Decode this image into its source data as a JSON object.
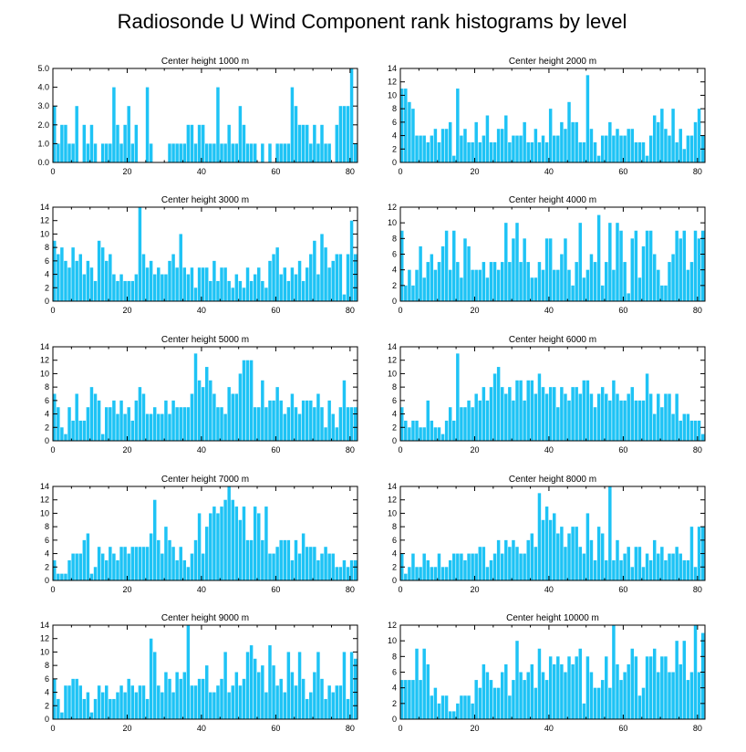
{
  "figure": {
    "title": "Radiosonde U Wind Component rank histograms by level",
    "bar_color": "#1ec3f5"
  },
  "chart_data": [
    {
      "type": "bar",
      "title": "Center height 1000 m",
      "x_ticks": [
        0,
        20,
        40,
        60,
        80
      ],
      "y_ticks": [
        "0.0",
        "1.0",
        "2.0",
        "3.0",
        "4.0",
        "5.0"
      ],
      "xlim": [
        0,
        82
      ],
      "ylim": [
        0,
        5
      ],
      "values": [
        3,
        1,
        2,
        2,
        1,
        1,
        3,
        0,
        2,
        1,
        2,
        1,
        0,
        1,
        1,
        1,
        4,
        2,
        1,
        2,
        3,
        1,
        2,
        0,
        0,
        4,
        1,
        0,
        0,
        0,
        0,
        1,
        1,
        1,
        1,
        1,
        2,
        2,
        1,
        2,
        2,
        1,
        1,
        1,
        4,
        1,
        1,
        2,
        1,
        1,
        3,
        2,
        1,
        1,
        1,
        0,
        1,
        0,
        1,
        0,
        1,
        1,
        1,
        1,
        4,
        3,
        2,
        2,
        2,
        1,
        2,
        1,
        2,
        1,
        1,
        0,
        2,
        3,
        3,
        3,
        5,
        1
      ]
    },
    {
      "type": "bar",
      "title": "Center height 2000 m",
      "x_ticks": [
        0,
        20,
        40,
        60,
        80
      ],
      "y_ticks": [
        "0",
        "2",
        "4",
        "6",
        "8",
        "10",
        "12",
        "14"
      ],
      "xlim": [
        0,
        82
      ],
      "ylim": [
        0,
        14
      ],
      "values": [
        11,
        11,
        9,
        8,
        4,
        4,
        4,
        3,
        4,
        5,
        3,
        5,
        5,
        6,
        1,
        11,
        4,
        5,
        3,
        3,
        6,
        3,
        4,
        7,
        3,
        3,
        5,
        5,
        7,
        3,
        4,
        4,
        4,
        6,
        3,
        3,
        5,
        3,
        4,
        3,
        8,
        4,
        4,
        6,
        5,
        9,
        6,
        6,
        3,
        3,
        13,
        5,
        3,
        1,
        4,
        4,
        6,
        4,
        5,
        4,
        4,
        5,
        5,
        3,
        3,
        3,
        1,
        4,
        7,
        6,
        8,
        5,
        4,
        8,
        3,
        5,
        2,
        4,
        4,
        6,
        8,
        4
      ]
    },
    {
      "type": "bar",
      "title": "Center height 3000 m",
      "x_ticks": [
        0,
        20,
        40,
        60,
        80
      ],
      "y_ticks": [
        "0",
        "2",
        "4",
        "6",
        "8",
        "10",
        "12",
        "14"
      ],
      "xlim": [
        0,
        82
      ],
      "ylim": [
        0,
        14
      ],
      "values": [
        9,
        7,
        8,
        6,
        5,
        8,
        6,
        7,
        4,
        6,
        5,
        3,
        9,
        8,
        6,
        7,
        4,
        3,
        4,
        3,
        3,
        3,
        4,
        14,
        7,
        5,
        6,
        4,
        5,
        4,
        4,
        6,
        7,
        5,
        10,
        5,
        4,
        5,
        2,
        5,
        5,
        5,
        3,
        6,
        3,
        5,
        5,
        3,
        2,
        4,
        3,
        2,
        5,
        3,
        4,
        5,
        3,
        2,
        6,
        7,
        8,
        4,
        5,
        3,
        5,
        4,
        6,
        3,
        5,
        7,
        9,
        4,
        10,
        8,
        5,
        6,
        7,
        7,
        1,
        7,
        12,
        7
      ]
    },
    {
      "type": "bar",
      "title": "Center height 4000 m",
      "x_ticks": [
        0,
        20,
        40,
        60,
        80
      ],
      "y_ticks": [
        "0",
        "2",
        "4",
        "6",
        "8",
        "10",
        "12"
      ],
      "xlim": [
        0,
        82
      ],
      "ylim": [
        0,
        12
      ],
      "values": [
        9,
        2,
        4,
        2,
        4,
        7,
        3,
        5,
        6,
        4,
        5,
        7,
        9,
        4,
        9,
        5,
        3,
        8,
        7,
        4,
        4,
        4,
        5,
        3,
        5,
        5,
        4,
        5,
        10,
        5,
        8,
        10,
        5,
        8,
        5,
        3,
        3,
        5,
        4,
        8,
        8,
        4,
        4,
        6,
        8,
        4,
        2,
        5,
        10,
        3,
        4,
        6,
        5,
        11,
        2,
        5,
        10,
        4,
        10,
        9,
        5,
        1,
        8,
        9,
        3,
        7,
        9,
        9,
        6,
        4,
        2,
        2,
        5,
        6,
        9,
        8,
        9,
        4,
        5,
        9,
        8,
        9
      ]
    },
    {
      "type": "bar",
      "title": "Center height 5000 m",
      "x_ticks": [
        0,
        20,
        40,
        60,
        80
      ],
      "y_ticks": [
        "0",
        "2",
        "4",
        "6",
        "8",
        "10",
        "12",
        "14"
      ],
      "xlim": [
        0,
        82
      ],
      "ylim": [
        0,
        14
      ],
      "values": [
        7,
        5,
        2,
        1,
        5,
        3,
        7,
        3,
        3,
        5,
        8,
        7,
        6,
        1,
        5,
        5,
        6,
        4,
        6,
        4,
        5,
        3,
        6,
        8,
        7,
        4,
        4,
        5,
        4,
        4,
        6,
        4,
        6,
        5,
        5,
        5,
        5,
        7,
        13,
        9,
        8,
        11,
        9,
        7,
        5,
        5,
        4,
        8,
        7,
        7,
        10,
        12,
        12,
        12,
        5,
        5,
        9,
        5,
        6,
        6,
        8,
        6,
        4,
        5,
        7,
        5,
        4,
        6,
        6,
        6,
        5,
        7,
        5,
        2,
        6,
        4,
        2,
        5,
        9,
        5,
        5,
        5
      ]
    },
    {
      "type": "bar",
      "title": "Center height 6000 m",
      "x_ticks": [
        0,
        20,
        40,
        60,
        80
      ],
      "y_ticks": [
        "0",
        "2",
        "4",
        "6",
        "8",
        "10",
        "12",
        "14"
      ],
      "xlim": [
        0,
        82
      ],
      "ylim": [
        0,
        14
      ],
      "values": [
        5,
        3,
        2,
        3,
        3,
        2,
        2,
        6,
        3,
        2,
        2,
        1,
        3,
        5,
        3,
        13,
        5,
        5,
        6,
        5,
        7,
        6,
        8,
        6,
        8,
        10,
        11,
        8,
        7,
        8,
        6,
        9,
        9,
        6,
        9,
        9,
        7,
        10,
        8,
        7,
        8,
        8,
        5,
        8,
        7,
        6,
        8,
        8,
        7,
        9,
        9,
        7,
        5,
        7,
        8,
        7,
        6,
        9,
        7,
        6,
        6,
        7,
        8,
        6,
        6,
        6,
        10,
        7,
        4,
        7,
        5,
        7,
        7,
        4,
        7,
        3,
        4,
        4,
        3,
        3,
        3,
        1
      ]
    },
    {
      "type": "bar",
      "title": "Center height 7000 m",
      "x_ticks": [
        0,
        20,
        40,
        60,
        80
      ],
      "y_ticks": [
        "0",
        "2",
        "4",
        "6",
        "8",
        "10",
        "12",
        "14"
      ],
      "xlim": [
        0,
        82
      ],
      "ylim": [
        0,
        14
      ],
      "values": [
        3,
        1,
        1,
        1,
        3,
        4,
        4,
        4,
        6,
        7,
        1,
        2,
        5,
        4,
        3,
        5,
        4,
        3,
        5,
        5,
        4,
        5,
        5,
        5,
        5,
        5,
        7,
        12,
        6,
        4,
        8,
        6,
        5,
        3,
        5,
        3,
        2,
        4,
        6,
        10,
        4,
        8,
        10,
        11,
        10,
        11,
        12,
        14,
        12,
        11,
        9,
        11,
        6,
        6,
        11,
        10,
        6,
        11,
        4,
        4,
        5,
        6,
        6,
        6,
        3,
        6,
        4,
        7,
        5,
        5,
        5,
        3,
        4,
        5,
        4,
        4,
        2,
        2,
        3,
        2,
        3,
        3
      ]
    },
    {
      "type": "bar",
      "title": "Center height 8000 m",
      "x_ticks": [
        0,
        20,
        40,
        60,
        80
      ],
      "y_ticks": [
        "0",
        "2",
        "4",
        "6",
        "8",
        "10",
        "12",
        "14"
      ],
      "xlim": [
        0,
        82
      ],
      "ylim": [
        0,
        14
      ],
      "values": [
        4,
        1,
        2,
        4,
        2,
        2,
        4,
        3,
        2,
        2,
        4,
        2,
        2,
        3,
        4,
        4,
        4,
        3,
        4,
        4,
        4,
        5,
        5,
        2,
        3,
        4,
        6,
        4,
        6,
        5,
        6,
        5,
        4,
        4,
        6,
        7,
        5,
        13,
        9,
        11,
        9,
        10,
        7,
        8,
        5,
        7,
        8,
        8,
        5,
        4,
        10,
        6,
        3,
        8,
        7,
        3,
        14,
        3,
        6,
        3,
        4,
        5,
        2,
        5,
        5,
        2,
        4,
        3,
        6,
        4,
        5,
        3,
        4,
        4,
        5,
        4,
        3,
        3,
        8,
        2,
        8,
        8
      ]
    },
    {
      "type": "bar",
      "title": "Center height 9000 m",
      "x_ticks": [
        0,
        20,
        40,
        60,
        80
      ],
      "y_ticks": [
        "0",
        "2",
        "4",
        "6",
        "8",
        "10",
        "12",
        "14"
      ],
      "xlim": [
        0,
        82
      ],
      "ylim": [
        0,
        14
      ],
      "values": [
        6,
        3,
        1,
        5,
        5,
        6,
        6,
        5,
        3,
        4,
        1,
        3,
        5,
        4,
        5,
        3,
        3,
        4,
        5,
        4,
        6,
        5,
        4,
        5,
        5,
        3,
        12,
        10,
        5,
        4,
        7,
        6,
        4,
        7,
        6,
        7,
        14,
        5,
        5,
        6,
        6,
        8,
        4,
        4,
        5,
        6,
        10,
        4,
        5,
        7,
        5,
        6,
        10,
        11,
        9,
        7,
        8,
        4,
        11,
        8,
        5,
        6,
        4,
        10,
        7,
        5,
        10,
        6,
        3,
        4,
        7,
        10,
        6,
        3,
        5,
        4,
        5,
        5,
        10,
        3,
        10,
        9
      ]
    },
    {
      "type": "bar",
      "title": "Center height 10000 m",
      "x_ticks": [
        0,
        20,
        40,
        60,
        80
      ],
      "y_ticks": [
        "0",
        "2",
        "4",
        "6",
        "8",
        "10",
        "12"
      ],
      "xlim": [
        0,
        82
      ],
      "ylim": [
        0,
        12
      ],
      "values": [
        5,
        5,
        5,
        5,
        9,
        5,
        9,
        7,
        3,
        4,
        2,
        3,
        3,
        1,
        1,
        2,
        3,
        3,
        3,
        2,
        5,
        4,
        7,
        6,
        5,
        4,
        4,
        6,
        7,
        3,
        5,
        10,
        6,
        5,
        6,
        7,
        4,
        9,
        6,
        5,
        8,
        7,
        8,
        7,
        6,
        8,
        7,
        8,
        9,
        2,
        8,
        6,
        4,
        4,
        5,
        8,
        4,
        12,
        7,
        5,
        6,
        7,
        9,
        8,
        3,
        4,
        8,
        8,
        9,
        6,
        8,
        8,
        6,
        6,
        10,
        7,
        10,
        5,
        6,
        12,
        6,
        11
      ]
    }
  ]
}
